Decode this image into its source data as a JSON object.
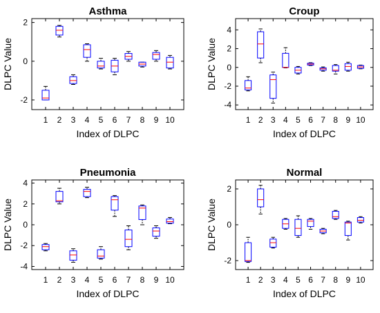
{
  "chart_data": [
    {
      "type": "box",
      "title": "Asthma",
      "xlabel": "Index of DLPC",
      "ylabel": "DLPC Value",
      "categories": [
        "1",
        "2",
        "3",
        "4",
        "5",
        "6",
        "7",
        "8",
        "9",
        "10"
      ],
      "ylim": [
        -2.5,
        2.2
      ],
      "yticks": [
        -2,
        0,
        2
      ],
      "boxes": [
        {
          "whisker_low": -2.0,
          "q1": -2.0,
          "median": -1.9,
          "q3": -1.5,
          "whisker_high": -1.3
        },
        {
          "whisker_low": 1.25,
          "q1": 1.35,
          "median": 1.6,
          "q3": 1.8,
          "whisker_high": 1.85
        },
        {
          "whisker_low": -1.2,
          "q1": -1.15,
          "median": -1.0,
          "q3": -0.8,
          "whisker_high": -0.7
        },
        {
          "whisker_low": 0.0,
          "q1": 0.2,
          "median": 0.6,
          "q3": 0.85,
          "whisker_high": 0.9
        },
        {
          "whisker_low": -0.4,
          "q1": -0.35,
          "median": -0.25,
          "q3": 0.0,
          "whisker_high": 0.15
        },
        {
          "whisker_low": -0.7,
          "q1": -0.55,
          "median": -0.25,
          "q3": 0.05,
          "whisker_high": 0.15
        },
        {
          "whisker_low": 0.0,
          "q1": 0.1,
          "median": 0.25,
          "q3": 0.4,
          "whisker_high": 0.5
        },
        {
          "whisker_low": -0.3,
          "q1": -0.25,
          "median": -0.15,
          "q3": -0.05,
          "whisker_high": -0.05
        },
        {
          "whisker_low": 0.0,
          "q1": 0.1,
          "median": 0.35,
          "q3": 0.45,
          "whisker_high": 0.55
        },
        {
          "whisker_low": -0.4,
          "q1": -0.35,
          "median": -0.05,
          "q3": 0.2,
          "whisker_high": 0.3
        }
      ]
    },
    {
      "type": "box",
      "title": "Croup",
      "xlabel": "Index of DLPC",
      "ylabel": "DLPC Value",
      "categories": [
        "1",
        "2",
        "3",
        "4",
        "5",
        "6",
        "7",
        "8",
        "9",
        "10"
      ],
      "ylim": [
        -4.5,
        5.2
      ],
      "yticks": [
        -4,
        -2,
        0,
        2,
        4
      ],
      "boxes": [
        {
          "whisker_low": -2.5,
          "q1": -2.4,
          "median": -2.2,
          "q3": -1.4,
          "whisker_high": -1.0
        },
        {
          "whisker_low": 0.5,
          "q1": 1.0,
          "median": 2.5,
          "q3": 3.8,
          "whisker_high": 4.1
        },
        {
          "whisker_low": -3.8,
          "q1": -3.3,
          "median": -1.3,
          "q3": -0.8,
          "whisker_high": -0.5
        },
        {
          "whisker_low": -0.05,
          "q1": 0.0,
          "median": 0.0,
          "q3": 1.5,
          "whisker_high": 2.1
        },
        {
          "whisker_low": -0.7,
          "q1": -0.6,
          "median": -0.3,
          "q3": 0.0,
          "whisker_high": 0.1
        },
        {
          "whisker_low": 0.2,
          "q1": 0.25,
          "median": 0.35,
          "q3": 0.45,
          "whisker_high": 0.5
        },
        {
          "whisker_low": -0.4,
          "q1": -0.3,
          "median": -0.15,
          "q3": -0.05,
          "whisker_high": 0.05
        },
        {
          "whisker_low": -0.7,
          "q1": -0.4,
          "median": -0.3,
          "q3": 0.2,
          "whisker_high": 0.3
        },
        {
          "whisker_low": -0.4,
          "q1": -0.3,
          "median": 0.1,
          "q3": 0.4,
          "whisker_high": 0.55
        },
        {
          "whisker_low": -0.15,
          "q1": -0.1,
          "median": 0.05,
          "q3": 0.2,
          "whisker_high": 0.25
        }
      ]
    },
    {
      "type": "box",
      "title": "Pneumonia",
      "xlabel": "Index of DLPC",
      "ylabel": "DLPC Value",
      "categories": [
        "1",
        "2",
        "3",
        "4",
        "5",
        "6",
        "7",
        "8",
        "9",
        "10"
      ],
      "ylim": [
        -4.3,
        4.3
      ],
      "yticks": [
        -4,
        -2,
        0,
        2,
        4
      ],
      "boxes": [
        {
          "whisker_low": -2.5,
          "q1": -2.4,
          "median": -2.1,
          "q3": -1.9,
          "whisker_high": -1.8
        },
        {
          "whisker_low": 2.0,
          "q1": 2.2,
          "median": 2.3,
          "q3": 3.2,
          "whisker_high": 3.5
        },
        {
          "whisker_low": -3.6,
          "q1": -3.4,
          "median": -2.9,
          "q3": -2.5,
          "whisker_high": -2.3
        },
        {
          "whisker_low": 2.6,
          "q1": 2.7,
          "median": 3.2,
          "q3": 3.4,
          "whisker_high": 3.6
        },
        {
          "whisker_low": -3.3,
          "q1": -3.2,
          "median": -3.0,
          "q3": -2.4,
          "whisker_high": -2.1
        },
        {
          "whisker_low": 0.8,
          "q1": 1.4,
          "median": 2.4,
          "q3": 2.7,
          "whisker_high": 2.8
        },
        {
          "whisker_low": -2.4,
          "q1": -2.1,
          "median": -1.4,
          "q3": -0.5,
          "whisker_high": -0.1
        },
        {
          "whisker_low": 0.0,
          "q1": 0.5,
          "median": 1.6,
          "q3": 1.8,
          "whisker_high": 1.9
        },
        {
          "whisker_low": -1.3,
          "q1": -1.1,
          "median": -0.6,
          "q3": -0.3,
          "whisker_high": -0.1
        },
        {
          "whisker_low": 0.1,
          "q1": 0.15,
          "median": 0.3,
          "q3": 0.55,
          "whisker_high": 0.7
        }
      ]
    },
    {
      "type": "box",
      "title": "Normal",
      "xlabel": "Index of DLPC",
      "ylabel": "DLPC Value",
      "categories": [
        "1",
        "2",
        "3",
        "4",
        "5",
        "6",
        "7",
        "8",
        "9",
        "10"
      ],
      "ylim": [
        -2.5,
        2.5
      ],
      "yticks": [
        -2,
        0,
        2
      ],
      "boxes": [
        {
          "whisker_low": -2.1,
          "q1": -2.05,
          "median": -2.0,
          "q3": -1.0,
          "whisker_high": -0.7
        },
        {
          "whisker_low": 0.6,
          "q1": 1.0,
          "median": 1.4,
          "q3": 2.0,
          "whisker_high": 2.2
        },
        {
          "whisker_low": -1.3,
          "q1": -1.25,
          "median": -1.0,
          "q3": -0.8,
          "whisker_high": -0.7
        },
        {
          "whisker_low": -0.25,
          "q1": -0.2,
          "median": 0.05,
          "q3": 0.3,
          "whisker_high": 0.35
        },
        {
          "whisker_low": -0.7,
          "q1": -0.6,
          "median": -0.2,
          "q3": 0.3,
          "whisker_high": 0.5
        },
        {
          "whisker_low": -0.25,
          "q1": -0.1,
          "median": 0.2,
          "q3": 0.3,
          "whisker_high": 0.35
        },
        {
          "whisker_low": -0.5,
          "q1": -0.45,
          "median": -0.35,
          "q3": -0.25,
          "whisker_high": -0.2
        },
        {
          "whisker_low": 0.3,
          "q1": 0.35,
          "median": 0.45,
          "q3": 0.75,
          "whisker_high": 0.8
        },
        {
          "whisker_low": -0.85,
          "q1": -0.6,
          "median": 0.1,
          "q3": 0.15,
          "whisker_high": 0.2
        },
        {
          "whisker_low": 0.1,
          "q1": 0.15,
          "median": 0.25,
          "q3": 0.4,
          "whisker_high": 0.45
        }
      ]
    }
  ],
  "colors": {
    "box": "#0000ff",
    "median": "#ff0000",
    "whisker": "#000000",
    "axis": "#000000"
  }
}
